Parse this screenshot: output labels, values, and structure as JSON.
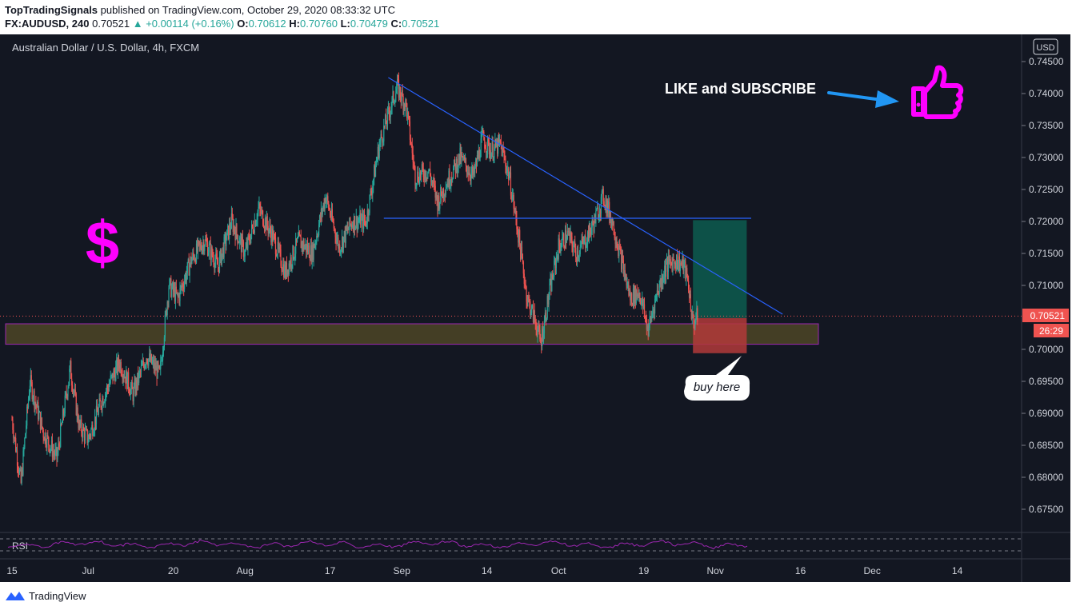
{
  "header": {
    "author": "TopTradingSignals",
    "published_text": "published on TradingView.com, October 29, 2020 08:33:32 UTC",
    "symbol": "FX:AUDUSD, 240",
    "last": "0.70521",
    "change_arrow": "▲",
    "change": "+0.00114 (+0.16%)",
    "o_label": "O:",
    "o_value": "0.70612",
    "h_label": "H:",
    "h_value": "0.70760",
    "l_label": "L:",
    "l_value": "0.70479",
    "c_label": "C:",
    "c_value": "0.70521"
  },
  "chart_title": "Australian Dollar / U.S. Dollar, 4h, FXCM",
  "currency_badge": "USD",
  "last_price_label": "0.70521",
  "countdown_label": "26:29",
  "annotations": {
    "like": "LIKE and SUBSCRIBE",
    "buy": "buy here",
    "dollar": "$"
  },
  "rsi_label": "RSI",
  "footer_brand": "TradingView",
  "icons": {
    "thumbs": "thumbs-up-icon",
    "logo": "tradingview-logo-icon"
  },
  "colors": {
    "background": "#131722",
    "up": "#26a69a",
    "down": "#ef5350",
    "annotation": "#ff00ff",
    "trendline": "#2962ff",
    "rsi": "#9c27b0",
    "arrow": "#2196f3"
  },
  "chart_data": {
    "type": "candlestick",
    "title": "Australian Dollar / U.S. Dollar, 4h, FXCM",
    "ylim": [
      0.67,
      0.747
    ],
    "y_ticks": [
      "0.74500",
      "0.74000",
      "0.73500",
      "0.73000",
      "0.72500",
      "0.72000",
      "0.71500",
      "0.71000",
      "0.70521",
      "0.70000",
      "0.69500",
      "0.69000",
      "0.68500",
      "0.68000",
      "0.67500"
    ],
    "y_tick_values": [
      0.745,
      0.74,
      0.735,
      0.73,
      0.725,
      0.72,
      0.715,
      0.71,
      0.70521,
      0.7,
      0.695,
      0.69,
      0.685,
      0.68,
      0.675
    ],
    "x_ticks": [
      "15",
      "Jul",
      "20",
      "Aug",
      "17",
      "Sep",
      "14",
      "Oct",
      "19",
      "Nov",
      "16",
      "Dec",
      "14"
    ],
    "x_tick_days": [
      0,
      17,
      36,
      52,
      71,
      87,
      106,
      122,
      141,
      157,
      176,
      192,
      211
    ],
    "close_path": [
      [
        0,
        0.689
      ],
      [
        2,
        0.679
      ],
      [
        4,
        0.695
      ],
      [
        7,
        0.687
      ],
      [
        10,
        0.683
      ],
      [
        13,
        0.697
      ],
      [
        15,
        0.688
      ],
      [
        17,
        0.686
      ],
      [
        20,
        0.692
      ],
      [
        24,
        0.698
      ],
      [
        27,
        0.693
      ],
      [
        30,
        0.699
      ],
      [
        33,
        0.696
      ],
      [
        35,
        0.71
      ],
      [
        37,
        0.708
      ],
      [
        40,
        0.714
      ],
      [
        43,
        0.717
      ],
      [
        46,
        0.713
      ],
      [
        49,
        0.72
      ],
      [
        52,
        0.715
      ],
      [
        55,
        0.722
      ],
      [
        58,
        0.718
      ],
      [
        61,
        0.712
      ],
      [
        64,
        0.717
      ],
      [
        67,
        0.715
      ],
      [
        70,
        0.724
      ],
      [
        73,
        0.716
      ],
      [
        76,
        0.72
      ],
      [
        79,
        0.72
      ],
      [
        82,
        0.732
      ],
      [
        85,
        0.739
      ],
      [
        86,
        0.741
      ],
      [
        88,
        0.738
      ],
      [
        90,
        0.727
      ],
      [
        93,
        0.728
      ],
      [
        95,
        0.723
      ],
      [
        97,
        0.726
      ],
      [
        100,
        0.73
      ],
      [
        103,
        0.727
      ],
      [
        105,
        0.733
      ],
      [
        107,
        0.731
      ],
      [
        109,
        0.732
      ],
      [
        111,
        0.727
      ],
      [
        113,
        0.718
      ],
      [
        115,
        0.708
      ],
      [
        117,
        0.704
      ],
      [
        118,
        0.701
      ],
      [
        120,
        0.709
      ],
      [
        122,
        0.716
      ],
      [
        124,
        0.718
      ],
      [
        126,
        0.715
      ],
      [
        128,
        0.717
      ],
      [
        130,
        0.72
      ],
      [
        132,
        0.724
      ],
      [
        134,
        0.72
      ],
      [
        136,
        0.714
      ],
      [
        138,
        0.708
      ],
      [
        140,
        0.709
      ],
      [
        142,
        0.703
      ],
      [
        144,
        0.709
      ],
      [
        146,
        0.713
      ],
      [
        148,
        0.714
      ],
      [
        150,
        0.713
      ],
      [
        151,
        0.71
      ],
      [
        152,
        0.704
      ],
      [
        153,
        0.7052
      ]
    ],
    "trendline": {
      "start": [
        84,
        0.7425
      ],
      "end": [
        172,
        0.7055
      ]
    },
    "resistance": {
      "start": [
        83,
        0.7205
      ],
      "end": [
        165,
        0.7205
      ],
      "value": 0.7205
    },
    "support_zone": {
      "start": [
        0,
        0.704
      ],
      "end": [
        180,
        0.7008
      ]
    },
    "position": {
      "x_start": 152,
      "x_end": 164,
      "entry": 0.7049,
      "target": 0.7202,
      "stop": 0.6994
    },
    "last_price": 0.70521,
    "rsi_panel": "RSI"
  }
}
